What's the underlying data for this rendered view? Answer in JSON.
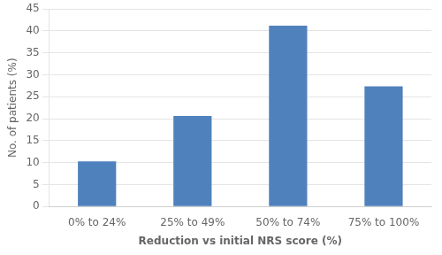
{
  "chart_data": {
    "type": "bar",
    "categories": [
      "0% to 24%",
      "25% to 49%",
      "50% to 74%",
      "75% to 100%"
    ],
    "values": [
      10.3,
      20.6,
      41.2,
      27.4
    ],
    "color": "#4f81bd",
    "xlabel": "Reduction vs initial NRS score (%)",
    "ylabel": "No. of patients (%)",
    "ylim": [
      0,
      45
    ],
    "yticks": [
      0,
      5,
      10,
      15,
      20,
      25,
      30,
      35,
      40,
      45
    ],
    "grid": true
  }
}
